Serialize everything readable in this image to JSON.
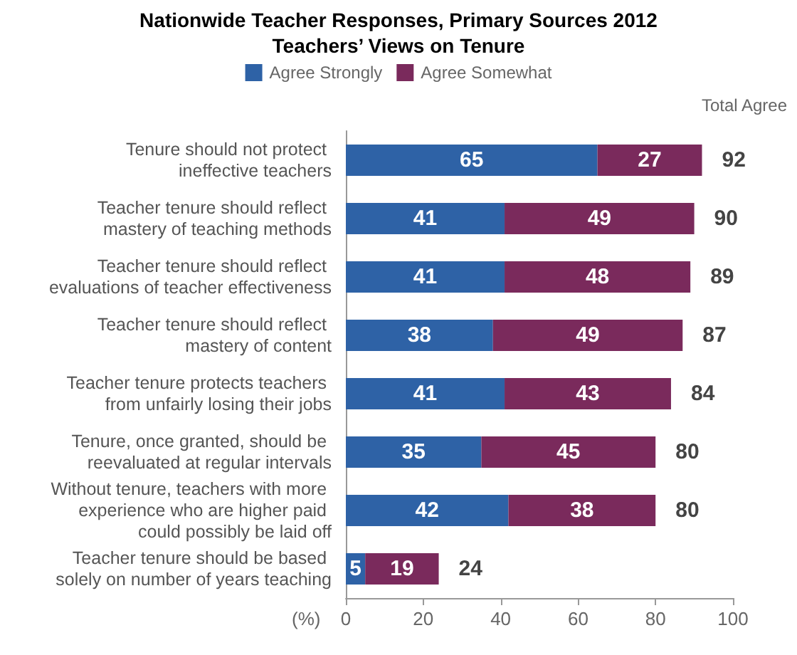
{
  "chart_data": {
    "type": "bar",
    "orientation": "horizontal",
    "stacked": true,
    "title": "Nationwide Teacher Responses, Primary Sources 2012",
    "subtitle": "Teachers’ Views on Tenure",
    "xlabel": "(%)",
    "categories": [
      "Tenure should not protect ineffective teachers",
      "Teacher tenure should reflect mastery of teaching methods",
      "Teacher tenure should reflect evaluations of teacher effectiveness",
      "Teacher tenure should reflect mastery of content",
      "Teacher tenure protects teachers from unfairly losing their jobs",
      "Tenure, once granted, should be reevaluated at regular intervals",
      "Without tenure, teachers with more experience who are higher paid could possibly be laid off",
      "Teacher tenure should be based solely on number of years teaching"
    ],
    "series": [
      {
        "name": "Agree Strongly",
        "color": "#2e62a6",
        "values": [
          65,
          41,
          41,
          38,
          41,
          35,
          42,
          5
        ]
      },
      {
        "name": "Agree Somewhat",
        "color": "#7a2a5c",
        "values": [
          27,
          49,
          48,
          49,
          43,
          45,
          38,
          19
        ]
      }
    ],
    "totals": [
      "92",
      "90",
      "89",
      "87",
      "84",
      "80",
      "80",
      "24"
    ],
    "annotations": [
      "Total Agree"
    ],
    "xlim": [
      0,
      100
    ],
    "xticks": [
      0,
      20,
      40,
      60,
      80,
      100
    ],
    "data_labels": true,
    "grid": false,
    "legend": "top"
  }
}
